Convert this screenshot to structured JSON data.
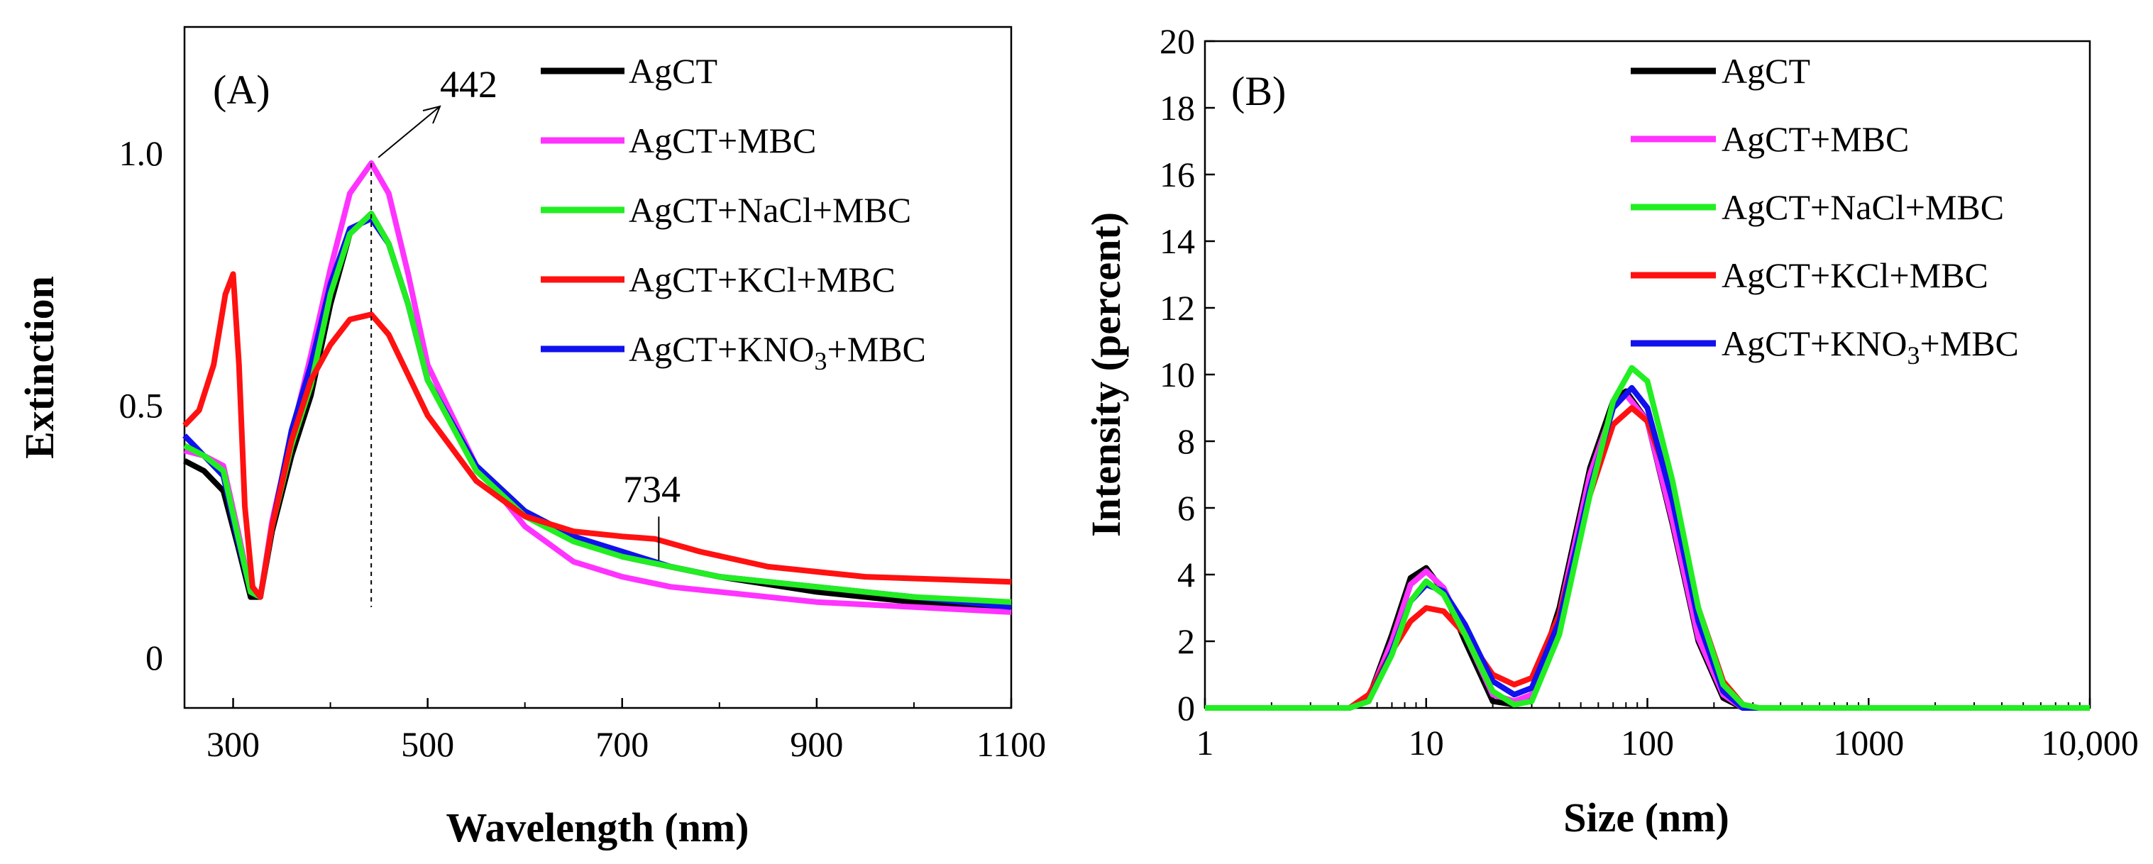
{
  "chart_data": [
    {
      "type": "line",
      "panel_label": "(A)",
      "xlabel": "Wavelength (nm)",
      "ylabel": "Extinction",
      "xlim": [
        250,
        1100
      ],
      "ylim": [
        -0.1,
        1.25
      ],
      "x_ticks": [
        300,
        500,
        700,
        900,
        1100
      ],
      "x_tick_labels": [
        "300",
        "500",
        "700",
        "900",
        "1100"
      ],
      "y_ticks": [
        0,
        0.5,
        1.0
      ],
      "y_tick_labels": [
        "0",
        "0.5",
        "1.0"
      ],
      "legend_position": "top-right",
      "annotations": [
        {
          "text": "442",
          "x": 442,
          "y": 0.98,
          "style": "arrow-dashed-line"
        },
        {
          "text": "734",
          "x": 734,
          "y": 0.2,
          "style": "leader-line"
        }
      ],
      "series": [
        {
          "name": "AgCT",
          "color": "#000000",
          "x": [
            250,
            270,
            290,
            305,
            318,
            328,
            340,
            360,
            380,
            400,
            420,
            442,
            460,
            480,
            500,
            550,
            600,
            650,
            700,
            750,
            800,
            900,
            1000,
            1100
          ],
          "y": [
            0.39,
            0.37,
            0.33,
            0.22,
            0.12,
            0.12,
            0.25,
            0.4,
            0.52,
            0.7,
            0.84,
            0.88,
            0.82,
            0.7,
            0.55,
            0.38,
            0.29,
            0.24,
            0.2,
            0.18,
            0.16,
            0.13,
            0.11,
            0.1
          ]
        },
        {
          "name": "AgCT+MBC",
          "color": "#ff33ff",
          "x": [
            250,
            270,
            290,
            305,
            318,
            328,
            340,
            360,
            380,
            400,
            420,
            442,
            460,
            480,
            500,
            550,
            600,
            650,
            700,
            750,
            800,
            900,
            1000,
            1100
          ],
          "y": [
            0.41,
            0.4,
            0.38,
            0.25,
            0.13,
            0.12,
            0.27,
            0.44,
            0.6,
            0.77,
            0.92,
            0.98,
            0.92,
            0.76,
            0.58,
            0.38,
            0.26,
            0.19,
            0.16,
            0.14,
            0.13,
            0.11,
            0.1,
            0.09
          ]
        },
        {
          "name": "AgCT+NaCl+MBC",
          "color": "#22ee22",
          "x": [
            250,
            270,
            290,
            305,
            318,
            328,
            340,
            360,
            380,
            400,
            420,
            442,
            460,
            480,
            500,
            550,
            600,
            650,
            700,
            750,
            800,
            900,
            1000,
            1100
          ],
          "y": [
            0.42,
            0.4,
            0.37,
            0.24,
            0.13,
            0.12,
            0.26,
            0.42,
            0.54,
            0.72,
            0.84,
            0.88,
            0.82,
            0.7,
            0.55,
            0.37,
            0.28,
            0.23,
            0.2,
            0.18,
            0.16,
            0.14,
            0.12,
            0.11
          ]
        },
        {
          "name": "AgCT+KCl+MBC",
          "color": "#ff1111",
          "x": [
            250,
            265,
            280,
            292,
            300,
            306,
            312,
            320,
            328,
            340,
            360,
            380,
            400,
            420,
            442,
            460,
            480,
            500,
            550,
            600,
            650,
            700,
            734,
            780,
            850,
            950,
            1100
          ],
          "y": [
            0.46,
            0.49,
            0.58,
            0.72,
            0.76,
            0.58,
            0.3,
            0.14,
            0.12,
            0.26,
            0.43,
            0.55,
            0.62,
            0.67,
            0.68,
            0.64,
            0.56,
            0.48,
            0.35,
            0.28,
            0.25,
            0.24,
            0.235,
            0.21,
            0.18,
            0.16,
            0.15
          ]
        },
        {
          "name": "AgCT+KNO3+MBC",
          "color": "#1111ee",
          "x": [
            250,
            270,
            290,
            305,
            318,
            328,
            340,
            360,
            380,
            400,
            420,
            442,
            460,
            480,
            500,
            550,
            600,
            650,
            700,
            750,
            800,
            900,
            1000,
            1100
          ],
          "y": [
            0.44,
            0.4,
            0.36,
            0.23,
            0.13,
            0.12,
            0.26,
            0.45,
            0.58,
            0.74,
            0.85,
            0.87,
            0.82,
            0.7,
            0.55,
            0.38,
            0.29,
            0.24,
            0.21,
            0.18,
            0.16,
            0.14,
            0.12,
            0.1
          ]
        }
      ]
    },
    {
      "type": "line",
      "panel_label": "(B)",
      "xlabel": "Size (nm)",
      "ylabel": "Intensity (percent)",
      "xscale": "log",
      "xlim": [
        1,
        10000
      ],
      "ylim": [
        0,
        20
      ],
      "x_ticks": [
        1,
        10,
        100,
        1000,
        10000
      ],
      "x_tick_labels": [
        "1",
        "10",
        "100",
        "1000",
        "10,000"
      ],
      "y_ticks": [
        0,
        2,
        4,
        6,
        8,
        10,
        12,
        14,
        16,
        18,
        20
      ],
      "y_tick_labels": [
        "0",
        "2",
        "4",
        "6",
        "8",
        "10",
        "12",
        "14",
        "16",
        "18",
        "20"
      ],
      "legend_position": "top-right",
      "series": [
        {
          "name": "AgCT",
          "color": "#000000",
          "x": [
            1,
            4.5,
            5.5,
            7,
            8.5,
            10,
            12,
            15,
            20,
            25,
            30,
            40,
            55,
            70,
            80,
            100,
            130,
            170,
            220,
            270,
            300,
            10000
          ],
          "y": [
            0,
            0,
            0.3,
            2.2,
            3.9,
            4.2,
            3.5,
            2.0,
            0.2,
            0.1,
            0.4,
            3.0,
            7.2,
            9.2,
            9.5,
            8.6,
            5.5,
            2.0,
            0.3,
            0,
            0,
            0
          ]
        },
        {
          "name": "AgCT+MBC",
          "color": "#ff33ff",
          "x": [
            1,
            4.5,
            5.5,
            7,
            8.5,
            10,
            12,
            15,
            20,
            25,
            30,
            40,
            55,
            70,
            80,
            100,
            130,
            170,
            220,
            270,
            300,
            10000
          ],
          "y": [
            0,
            0,
            0.3,
            2.0,
            3.7,
            4.1,
            3.6,
            2.2,
            0.4,
            0.2,
            0.4,
            2.8,
            7.0,
            9.0,
            9.4,
            8.6,
            5.6,
            2.1,
            0.4,
            0,
            0,
            0
          ]
        },
        {
          "name": "AgCT+NaCl+MBC",
          "color": "#22ee22",
          "x": [
            1,
            4.5,
            5.5,
            7,
            8.5,
            10,
            12,
            15,
            20,
            25,
            30,
            40,
            55,
            70,
            85,
            100,
            130,
            170,
            220,
            270,
            320,
            10000
          ],
          "y": [
            0,
            0,
            0.2,
            1.6,
            3.2,
            3.8,
            3.4,
            2.2,
            0.5,
            0.1,
            0.2,
            2.2,
            6.4,
            9.2,
            10.2,
            9.8,
            6.8,
            3.0,
            0.7,
            0.1,
            0,
            0
          ]
        },
        {
          "name": "AgCT+KCl+MBC",
          "color": "#ff1111",
          "x": [
            1,
            4.5,
            5.5,
            7,
            8.5,
            10,
            12,
            15,
            20,
            25,
            30,
            40,
            55,
            70,
            85,
            100,
            130,
            170,
            220,
            270,
            320,
            10000
          ],
          "y": [
            0,
            0,
            0.4,
            1.7,
            2.6,
            3.0,
            2.9,
            2.2,
            1.0,
            0.7,
            0.9,
            2.8,
            6.4,
            8.5,
            9.0,
            8.6,
            6.5,
            3.0,
            0.8,
            0.1,
            0,
            0
          ]
        },
        {
          "name": "AgCT+KNO3+MBC",
          "color": "#1111ee",
          "x": [
            1,
            4.5,
            5.5,
            7,
            8.5,
            10,
            12,
            15,
            20,
            25,
            30,
            40,
            55,
            70,
            85,
            100,
            130,
            170,
            220,
            270,
            320,
            10000
          ],
          "y": [
            0,
            0,
            0.2,
            1.7,
            3.2,
            3.7,
            3.5,
            2.5,
            0.8,
            0.4,
            0.6,
            2.6,
            6.6,
            9.0,
            9.6,
            9.0,
            6.2,
            2.6,
            0.5,
            0,
            0,
            0
          ]
        }
      ]
    }
  ]
}
